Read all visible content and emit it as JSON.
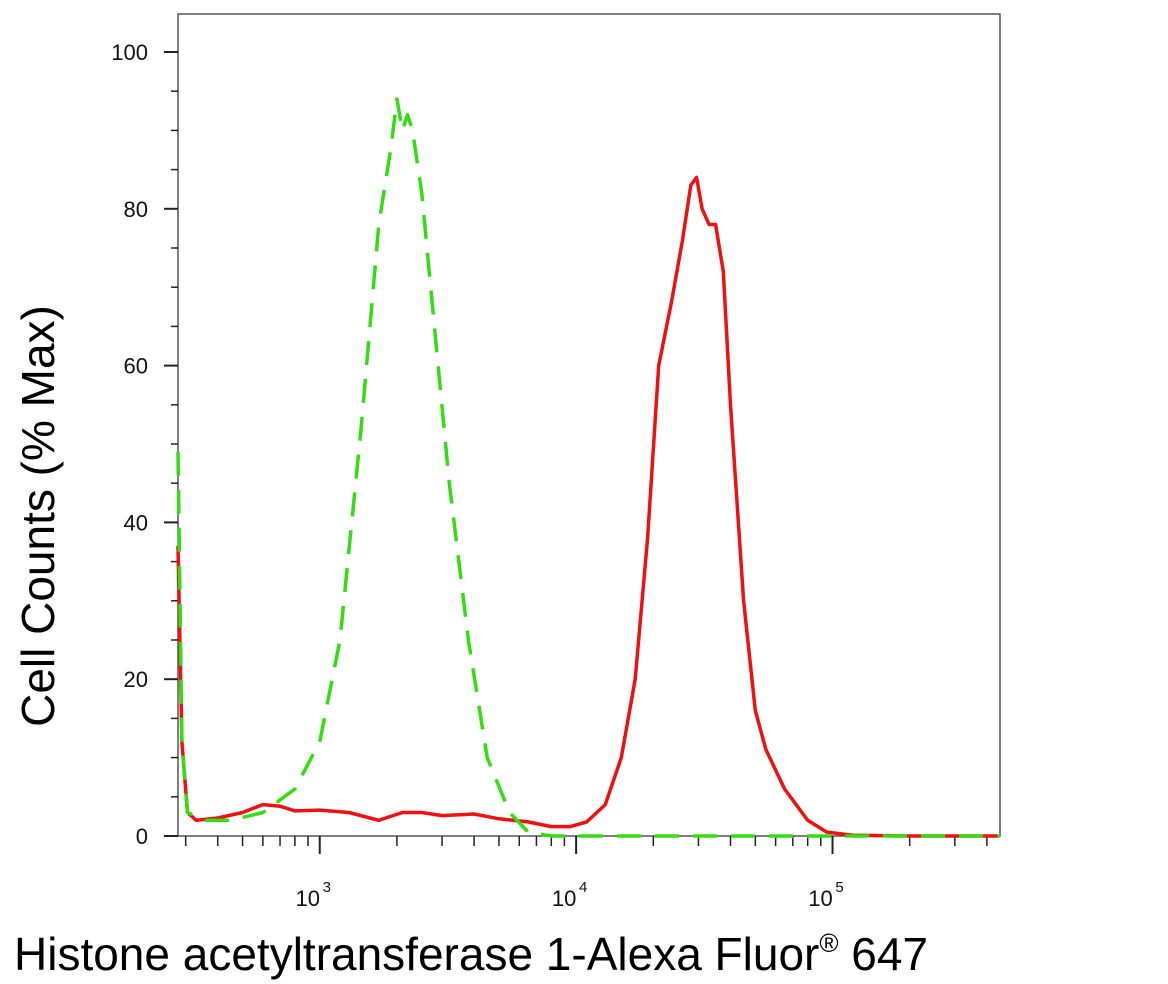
{
  "chart_data": {
    "type": "line",
    "xscale": "log",
    "xlim": [
      280,
      450000
    ],
    "ylim": [
      0,
      100
    ],
    "xlabel": "Histone acetyltransferase 1-Alexa Fluor",
    "xlabel_superscript": "®",
    "xlabel_suffix": " 647",
    "ylabel": "Cell Counts (% Max)",
    "yticks": [
      {
        "value": 0,
        "label": "0"
      },
      {
        "value": 20,
        "label": "20"
      },
      {
        "value": 40,
        "label": "40"
      },
      {
        "value": 60,
        "label": "60"
      },
      {
        "value": 80,
        "label": "80"
      },
      {
        "value": 100,
        "label": "100"
      }
    ],
    "xticks": [
      {
        "value": 1000,
        "base": "10",
        "exp": "3"
      },
      {
        "value": 10000,
        "base": "10",
        "exp": "4"
      },
      {
        "value": 100000,
        "base": "10",
        "exp": "5"
      }
    ],
    "grid": false,
    "series": [
      {
        "color": "#33dd11",
        "style": "dashed",
        "points": [
          [
            280,
            49
          ],
          [
            290,
            12
          ],
          [
            305,
            3
          ],
          [
            360,
            2
          ],
          [
            450,
            2
          ],
          [
            600,
            3
          ],
          [
            800,
            6
          ],
          [
            1000,
            12
          ],
          [
            1200,
            25
          ],
          [
            1450,
            52
          ],
          [
            1700,
            78
          ],
          [
            1900,
            88
          ],
          [
            2000,
            94
          ],
          [
            2100,
            90
          ],
          [
            2200,
            92
          ],
          [
            2300,
            90
          ],
          [
            2500,
            82
          ],
          [
            2800,
            65
          ],
          [
            3200,
            45
          ],
          [
            3800,
            25
          ],
          [
            4500,
            10
          ],
          [
            5500,
            3
          ],
          [
            6500,
            0.5
          ],
          [
            8000,
            0
          ],
          [
            20000,
            0
          ],
          [
            100000,
            0
          ],
          [
            450000,
            0
          ]
        ]
      },
      {
        "color": "#ee1111",
        "style": "solid",
        "points": [
          [
            280,
            37
          ],
          [
            290,
            12
          ],
          [
            305,
            3
          ],
          [
            330,
            2
          ],
          [
            400,
            2.3
          ],
          [
            500,
            3
          ],
          [
            600,
            4
          ],
          [
            700,
            3.8
          ],
          [
            800,
            3.2
          ],
          [
            1000,
            3.3
          ],
          [
            1300,
            3
          ],
          [
            1700,
            2
          ],
          [
            2100,
            3
          ],
          [
            2500,
            3
          ],
          [
            3000,
            2.6
          ],
          [
            4000,
            2.8
          ],
          [
            5000,
            2.2
          ],
          [
            6500,
            1.8
          ],
          [
            8000,
            1.2
          ],
          [
            9500,
            1.2
          ],
          [
            11000,
            1.8
          ],
          [
            13000,
            4
          ],
          [
            15000,
            10
          ],
          [
            17000,
            20
          ],
          [
            19000,
            38
          ],
          [
            21000,
            60
          ],
          [
            23500,
            68
          ],
          [
            26000,
            76
          ],
          [
            28000,
            83
          ],
          [
            29500,
            84
          ],
          [
            31000,
            80
          ],
          [
            33000,
            78
          ],
          [
            35000,
            78
          ],
          [
            37500,
            72
          ],
          [
            40000,
            55
          ],
          [
            45000,
            30
          ],
          [
            50000,
            16
          ],
          [
            55000,
            11
          ],
          [
            65000,
            6
          ],
          [
            80000,
            2
          ],
          [
            95000,
            0.5
          ],
          [
            120000,
            0.1
          ],
          [
            200000,
            0
          ],
          [
            450000,
            0
          ]
        ]
      }
    ]
  }
}
